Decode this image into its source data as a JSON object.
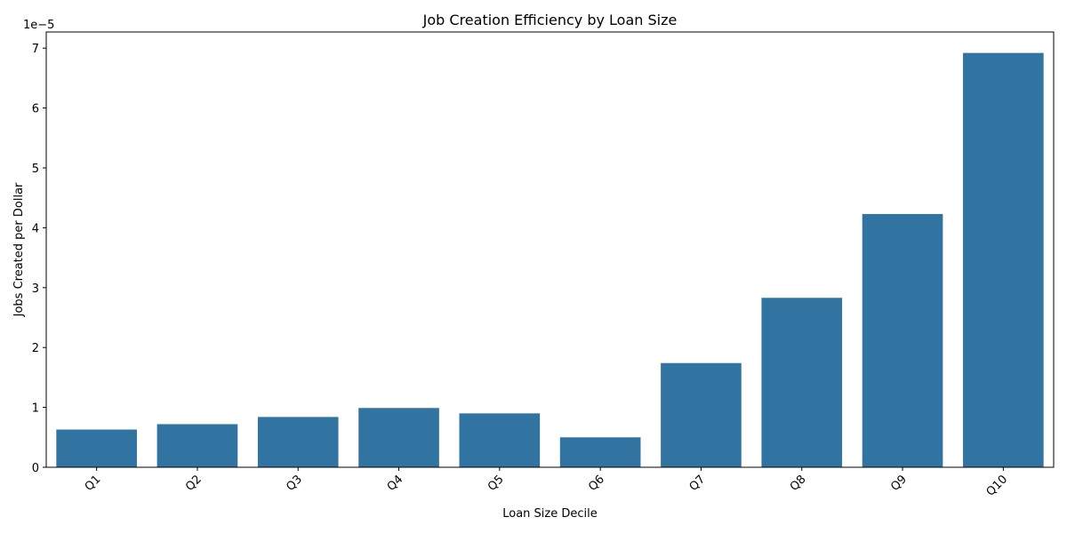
{
  "chart_data": {
    "type": "bar",
    "title": "Job Creation Efficiency by Loan Size",
    "xlabel": "Loan Size Decile",
    "ylabel": "Jobs Created per Dollar",
    "y_offset_label": "1e−5",
    "categories": [
      "Q1",
      "Q2",
      "Q3",
      "Q4",
      "Q5",
      "Q6",
      "Q7",
      "Q8",
      "Q9",
      "Q10"
    ],
    "values": [
      6.3e-06,
      7.2e-06,
      8.4e-06,
      9.9e-06,
      9e-06,
      5e-06,
      1.74e-05,
      2.83e-05,
      4.23e-05,
      6.92e-05
    ],
    "ylim": [
      0,
      7.27e-05
    ],
    "yticks": [
      0,
      1e-05,
      2e-05,
      3e-05,
      4e-05,
      5e-05,
      6e-05,
      7e-05
    ],
    "ytick_labels": [
      "0",
      "1",
      "2",
      "3",
      "4",
      "5",
      "6",
      "7"
    ],
    "bar_color": "#3274a1",
    "grid": false,
    "legend": "none"
  }
}
